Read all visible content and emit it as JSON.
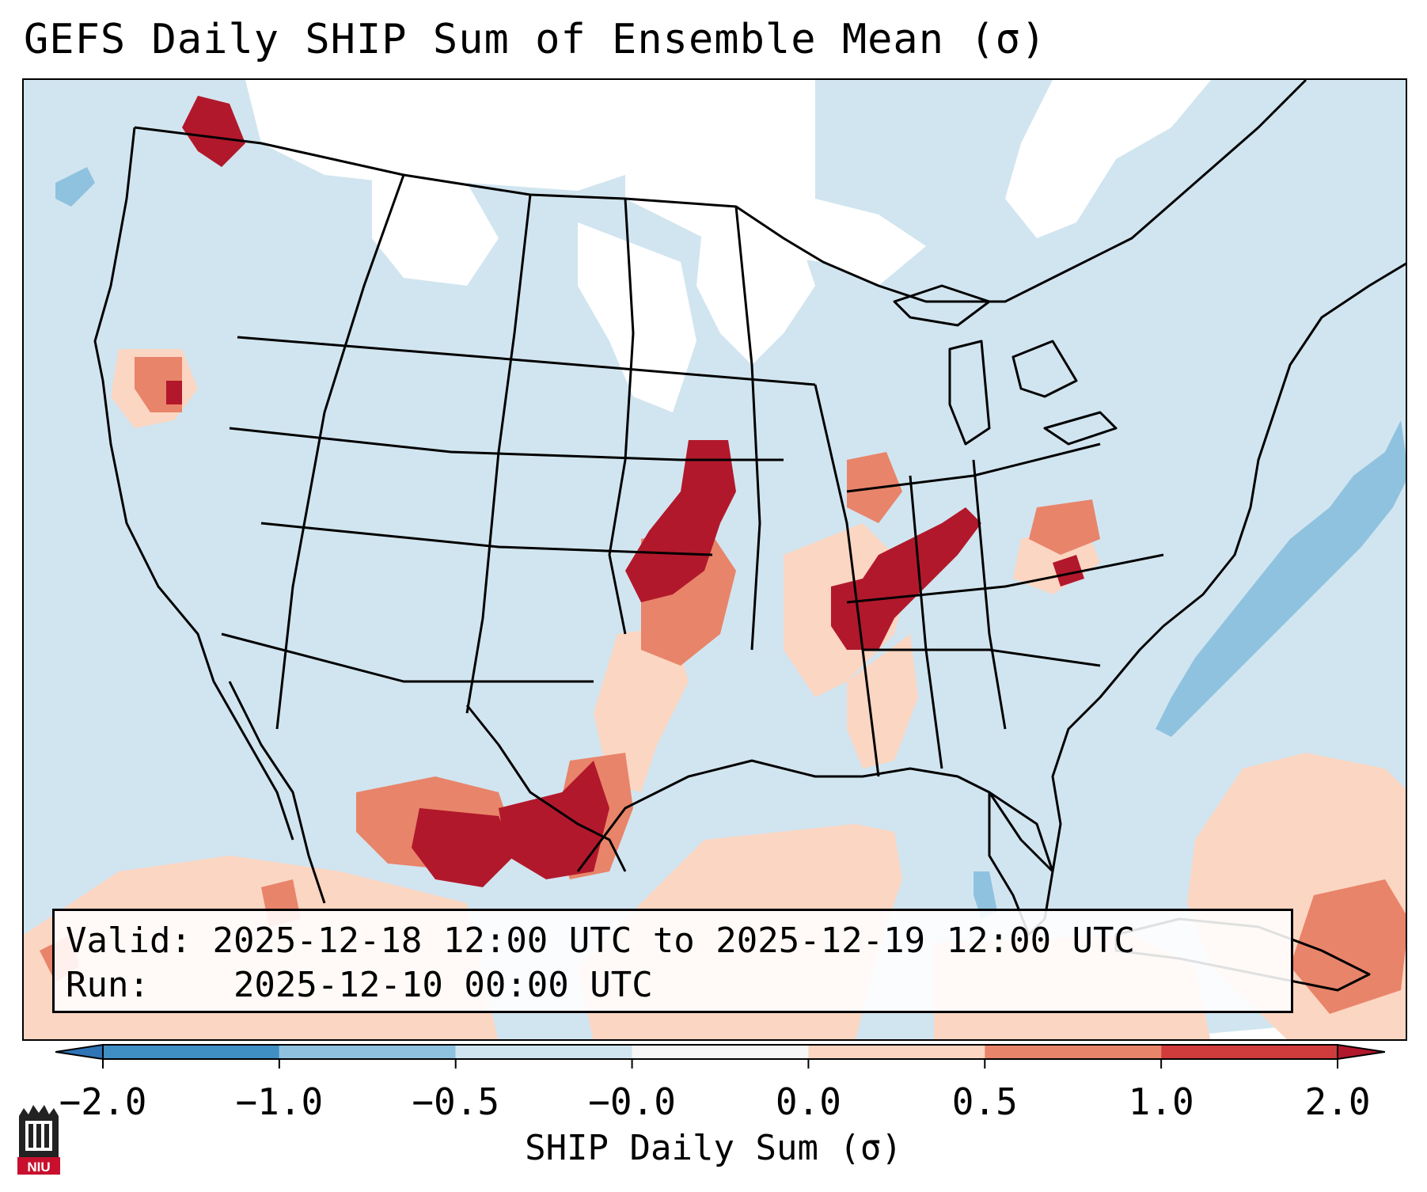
{
  "title": "GEFS Daily SHIP Sum of Ensemble Mean (σ)",
  "info": {
    "valid_label": "Valid:",
    "valid_value": "2025-12-18 12:00 UTC to 2025-12-19 12:00 UTC",
    "run_label": "Run:",
    "run_value": "2025-12-10 00:00 UTC"
  },
  "colorbar": {
    "label": "SHIP Daily Sum (σ)",
    "ticks": [
      "−2.0",
      "−1.0",
      "−0.5",
      "−0.0",
      "0.0",
      "0.5",
      "1.0",
      "2.0"
    ],
    "colors": [
      "#3f8ec4",
      "#8fc2df",
      "#d1e5f0",
      "#f7f7f7",
      "#fbd6c2",
      "#e8846a",
      "#d03b3b"
    ],
    "extend_low_color": "#2f74b5",
    "extend_high_color": "#b2182b"
  },
  "map": {
    "ocean_color": "#d1e5f0",
    "land_background_color": "#d1e5f0",
    "no_signal_color": "#ffffff",
    "boundary_color": "#000000"
  },
  "logo": {
    "text": "NIU"
  }
}
